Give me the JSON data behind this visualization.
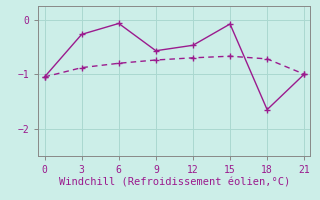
{
  "line1_x": [
    0,
    3,
    6,
    9,
    12,
    15,
    18,
    21
  ],
  "line1_y": [
    -1.05,
    -0.27,
    -0.07,
    -0.57,
    -0.47,
    -0.08,
    -1.65,
    -1.0
  ],
  "line2_x": [
    0,
    3,
    6,
    9,
    12,
    15,
    18,
    21
  ],
  "line2_y": [
    -1.05,
    -0.88,
    -0.8,
    -0.74,
    -0.7,
    -0.67,
    -0.72,
    -1.0
  ],
  "line_color": "#9b1b8e",
  "bg_color": "#cceee8",
  "xlabel": "Windchill (Refroidissement éolien,°C)",
  "xlim": [
    -0.5,
    21.5
  ],
  "ylim": [
    -2.5,
    0.25
  ],
  "xticks": [
    0,
    3,
    6,
    9,
    12,
    15,
    18,
    21
  ],
  "yticks": [
    -2,
    -1,
    0
  ],
  "xlabel_fontsize": 7.5,
  "tick_fontsize": 7,
  "grid_color": "#aad8d0"
}
